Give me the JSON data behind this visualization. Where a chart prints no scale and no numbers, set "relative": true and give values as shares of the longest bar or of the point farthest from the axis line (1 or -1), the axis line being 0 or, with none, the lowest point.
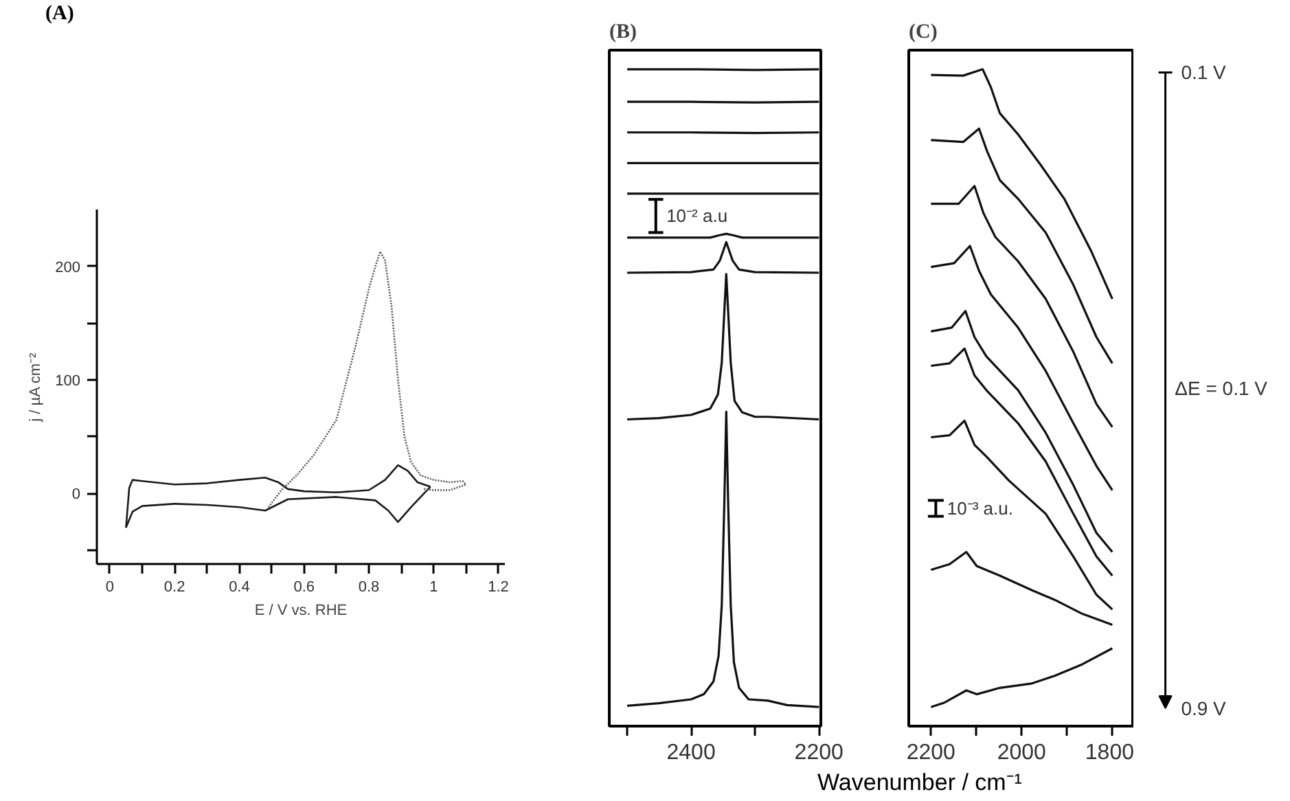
{
  "chart_data": [
    {
      "type": "line",
      "title": "(A)",
      "xlabel": "E / V vs. RHE",
      "ylabel": "j / µA cm⁻²",
      "xlim": [
        -0.04,
        1.22
      ],
      "ylim": [
        -62,
        250
      ],
      "xticks": [
        0,
        {
          "value": 0.1,
          "label": null
        },
        0.2,
        {
          "value": 0.3,
          "label": null
        },
        0.4,
        {
          "value": 0.5,
          "label": null
        },
        0.6,
        {
          "value": 0.7,
          "label": null
        },
        0.8,
        {
          "value": 0.9,
          "label": null
        },
        1,
        {
          "value": 1.1,
          "label": null
        },
        1.2
      ],
      "yticks": [
        {
          "value": -50,
          "label": null
        },
        0,
        {
          "value": 50,
          "label": null
        },
        100,
        {
          "value": 150,
          "label": null
        },
        200
      ],
      "grid": false,
      "marker": "none",
      "series": [
        {
          "color": "#1a1a1a",
          "line_style": "solid",
          "x": [
            0.05,
            0.06,
            0.07,
            0.1,
            0.2,
            0.3,
            0.4,
            0.48,
            0.52,
            0.55,
            0.6,
            0.7,
            0.8,
            0.85,
            0.89,
            0.92,
            0.95,
            0.99
          ],
          "values": [
            -30,
            5,
            12,
            11,
            8,
            9,
            12,
            14,
            10,
            4,
            2,
            1,
            3,
            12,
            25,
            20,
            10,
            6
          ]
        },
        {
          "color": "#1a1a1a",
          "line_style": "solid",
          "x": [
            0.05,
            0.07,
            0.1,
            0.2,
            0.3,
            0.4,
            0.48,
            0.55,
            0.7,
            0.82,
            0.86,
            0.89,
            0.93,
            0.97,
            0.99
          ],
          "values": [
            -30,
            -16,
            -11,
            -9,
            -10,
            -12,
            -15,
            -5,
            -3,
            -6,
            -15,
            -25,
            -12,
            0,
            6
          ]
        },
        {
          "color": "#555555",
          "line_style": "dotted",
          "x": [
            0.49,
            0.53,
            0.58,
            0.63,
            0.7,
            0.76,
            0.8,
            0.82,
            0.835,
            0.85,
            0.87,
            0.89,
            0.91,
            0.93,
            0.96,
            1.0,
            1.05,
            1.09,
            1.1
          ],
          "values": [
            -12,
            3,
            17,
            34,
            65,
            131,
            180,
            200,
            213,
            205,
            165,
            100,
            50,
            28,
            16,
            12,
            10,
            11,
            8
          ]
        },
        {
          "color": "#555555",
          "line_style": "dotted",
          "x": [
            0.97,
            1.0,
            1.05,
            1.1
          ],
          "values": [
            4,
            3,
            3,
            8
          ]
        }
      ]
    },
    {
      "type": "line",
      "title": "(B)",
      "relative": true,
      "xlim": [
        2528,
        2197
      ],
      "xticks": [
        2400,
        2200
      ],
      "grid": false,
      "marker": "none",
      "annotations": [
        "10⁻² a.u"
      ],
      "series": [
        {
          "color": "#111111",
          "x": [
            2500,
            2400,
            2300,
            2200
          ],
          "values": [
            1.0,
            1.0,
            0.999,
            1.0
          ]
        },
        {
          "color": "#111111",
          "x": [
            2500,
            2400,
            2300,
            2200
          ],
          "values": [
            0.949,
            0.949,
            0.948,
            0.949
          ]
        },
        {
          "color": "#111111",
          "x": [
            2500,
            2400,
            2300,
            2200
          ],
          "values": [
            0.901,
            0.901,
            0.9,
            0.901
          ]
        },
        {
          "color": "#111111",
          "x": [
            2500,
            2400,
            2300,
            2200
          ],
          "values": [
            0.853,
            0.853,
            0.853,
            0.853
          ]
        },
        {
          "color": "#111111",
          "x": [
            2500,
            2400,
            2300,
            2200
          ],
          "values": [
            0.805,
            0.805,
            0.805,
            0.805
          ]
        },
        {
          "color": "#111111",
          "x": [
            2500,
            2370,
            2355,
            2345,
            2335,
            2320,
            2200
          ],
          "values": [
            0.736,
            0.736,
            0.74,
            0.742,
            0.74,
            0.736,
            0.736
          ]
        },
        {
          "color": "#111111",
          "x": [
            2500,
            2400,
            2365,
            2355,
            2345,
            2335,
            2325,
            2300,
            2200
          ],
          "values": [
            0.681,
            0.682,
            0.686,
            0.7,
            0.729,
            0.7,
            0.686,
            0.682,
            0.681
          ]
        },
        {
          "color": "#111111",
          "x": [
            2500,
            2450,
            2400,
            2370,
            2358,
            2352,
            2348,
            2345,
            2342,
            2338,
            2332,
            2320,
            2300,
            2280,
            2200
          ],
          "values": [
            0.451,
            0.453,
            0.458,
            0.468,
            0.49,
            0.54,
            0.62,
            0.679,
            0.62,
            0.54,
            0.48,
            0.462,
            0.455,
            0.455,
            0.451
          ]
        },
        {
          "color": "#111111",
          "x": [
            2500,
            2450,
            2400,
            2380,
            2365,
            2357,
            2352,
            2348,
            2345,
            2342,
            2338,
            2333,
            2325,
            2310,
            2280,
            2250,
            2200
          ],
          "values": [
            0.002,
            0.006,
            0.012,
            0.02,
            0.04,
            0.08,
            0.16,
            0.32,
            0.463,
            0.32,
            0.16,
            0.07,
            0.03,
            0.012,
            0.01,
            0.003,
            0.0
          ]
        }
      ]
    },
    {
      "type": "line",
      "title": "(C)",
      "xlabel": "Wavenumber / cm⁻¹",
      "relative": true,
      "xlim": [
        2249,
        1752
      ],
      "xticks": [
        2200,
        2000,
        1800
      ],
      "grid": false,
      "marker": "none",
      "annotations": [
        "10⁻³ a.u.",
        "0.1 V",
        "ΔE = 0.1 V",
        "0.9 V"
      ],
      "series": [
        {
          "color": "#111111",
          "x": [
            2200,
            2129,
            2086,
            2068,
            2048,
            2008,
            1957,
            1906,
            1846,
            1800
          ],
          "values": [
            0.991,
            0.99,
            1.0,
            0.972,
            0.931,
            0.898,
            0.849,
            0.797,
            0.714,
            0.64
          ]
        },
        {
          "color": "#111111",
          "x": [
            2200,
            2129,
            2094,
            2076,
            2048,
            2008,
            1947,
            1886,
            1835,
            1800
          ],
          "values": [
            0.889,
            0.886,
            0.907,
            0.871,
            0.826,
            0.797,
            0.744,
            0.662,
            0.58,
            0.539
          ]
        },
        {
          "color": "#111111",
          "x": [
            2200,
            2139,
            2104,
            2084,
            2058,
            2008,
            1947,
            1886,
            1835,
            1800
          ],
          "values": [
            0.789,
            0.789,
            0.817,
            0.774,
            0.737,
            0.699,
            0.64,
            0.557,
            0.475,
            0.439
          ]
        },
        {
          "color": "#111111",
          "x": [
            2200,
            2149,
            2114,
            2094,
            2068,
            2008,
            1947,
            1886,
            1835,
            1800
          ],
          "values": [
            0.69,
            0.696,
            0.723,
            0.684,
            0.647,
            0.595,
            0.527,
            0.445,
            0.378,
            0.34
          ]
        },
        {
          "color": "#111111",
          "x": [
            2200,
            2154,
            2124,
            2104,
            2078,
            2008,
            1947,
            1886,
            1835,
            1800
          ],
          "values": [
            0.589,
            0.595,
            0.621,
            0.58,
            0.55,
            0.497,
            0.43,
            0.348,
            0.273,
            0.243
          ]
        },
        {
          "color": "#111111",
          "x": [
            2200,
            2159,
            2126,
            2104,
            2078,
            2008,
            1947,
            1886,
            1835,
            1800
          ],
          "values": [
            0.535,
            0.539,
            0.562,
            0.52,
            0.497,
            0.445,
            0.385,
            0.303,
            0.236,
            0.206
          ]
        },
        {
          "color": "#111111",
          "x": [
            2200,
            2159,
            2126,
            2104,
            2078,
            2028,
            1947,
            1886,
            1835,
            1800
          ],
          "values": [
            0.423,
            0.426,
            0.449,
            0.411,
            0.393,
            0.355,
            0.303,
            0.236,
            0.176,
            0.153
          ]
        },
        {
          "color": "#111111",
          "x": [
            2200,
            2159,
            2122,
            2099,
            2048,
            1977,
            1927,
            1866,
            1800
          ],
          "values": [
            0.215,
            0.224,
            0.243,
            0.221,
            0.206,
            0.183,
            0.168,
            0.146,
            0.129
          ]
        },
        {
          "color": "#111111",
          "x": [
            2200,
            2170,
            2122,
            2099,
            2048,
            1977,
            1927,
            1866,
            1800
          ],
          "values": [
            0.0,
            0.007,
            0.026,
            0.02,
            0.03,
            0.037,
            0.049,
            0.067,
            0.092
          ]
        }
      ]
    }
  ]
}
